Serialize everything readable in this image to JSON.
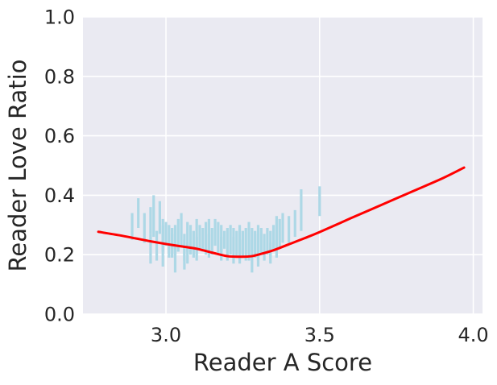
{
  "chart_data": {
    "type": "line",
    "title": "",
    "xlabel": "Reader A Score",
    "ylabel": "Reader Love Ratio",
    "xlim": [
      2.73,
      4.03
    ],
    "ylim": [
      0.0,
      1.0
    ],
    "xticks": [
      3.0,
      3.5,
      4.0
    ],
    "xtick_labels": [
      "3.0",
      "3.5",
      "4.0"
    ],
    "yticks": [
      0.0,
      0.2,
      0.4,
      0.6,
      0.8,
      1.0
    ],
    "ytick_labels": [
      "0.0",
      "0.2",
      "0.4",
      "0.6",
      "0.8",
      "1.0"
    ],
    "grid": true,
    "background_color": "#eaeaf2",
    "series": [
      {
        "kind": "vertical-ranges",
        "color": "#add8e6",
        "ranges": [
          [
            2.89,
            0.25,
            0.34
          ],
          [
            2.91,
            0.29,
            0.39
          ],
          [
            2.93,
            0.24,
            0.34
          ],
          [
            2.95,
            0.27,
            0.36
          ],
          [
            2.96,
            0.26,
            0.4
          ],
          [
            2.97,
            0.18,
            0.28
          ],
          [
            2.98,
            0.27,
            0.38
          ],
          [
            2.99,
            0.21,
            0.32
          ],
          [
            3.0,
            0.23,
            0.31
          ],
          [
            3.01,
            0.19,
            0.3
          ],
          [
            3.02,
            0.22,
            0.29
          ],
          [
            3.03,
            0.2,
            0.3
          ],
          [
            3.04,
            0.21,
            0.32
          ],
          [
            3.05,
            0.23,
            0.34
          ],
          [
            3.06,
            0.18,
            0.27
          ],
          [
            3.07,
            0.21,
            0.31
          ],
          [
            3.08,
            0.2,
            0.3
          ],
          [
            3.09,
            0.19,
            0.28
          ],
          [
            3.1,
            0.2,
            0.32
          ],
          [
            3.11,
            0.22,
            0.3
          ],
          [
            3.12,
            0.21,
            0.29
          ],
          [
            3.13,
            0.2,
            0.31
          ],
          [
            3.14,
            0.21,
            0.32
          ],
          [
            3.15,
            0.2,
            0.29
          ],
          [
            3.16,
            0.23,
            0.32
          ],
          [
            3.17,
            0.2,
            0.31
          ],
          [
            3.18,
            0.21,
            0.3
          ],
          [
            3.19,
            0.22,
            0.28
          ],
          [
            3.2,
            0.18,
            0.29
          ],
          [
            3.21,
            0.2,
            0.3
          ],
          [
            3.22,
            0.21,
            0.29
          ],
          [
            3.23,
            0.19,
            0.28
          ],
          [
            3.24,
            0.2,
            0.3
          ],
          [
            3.25,
            0.19,
            0.28
          ],
          [
            3.26,
            0.18,
            0.29
          ],
          [
            3.27,
            0.18,
            0.31
          ],
          [
            3.28,
            0.21,
            0.29
          ],
          [
            3.29,
            0.19,
            0.28
          ],
          [
            3.3,
            0.18,
            0.3
          ],
          [
            3.31,
            0.2,
            0.29
          ],
          [
            3.32,
            0.18,
            0.27
          ],
          [
            3.33,
            0.2,
            0.29
          ],
          [
            3.34,
            0.19,
            0.28
          ],
          [
            3.35,
            0.21,
            0.3
          ],
          [
            3.36,
            0.23,
            0.33
          ],
          [
            3.37,
            0.22,
            0.32
          ],
          [
            3.38,
            0.24,
            0.34
          ],
          [
            3.4,
            0.24,
            0.33
          ],
          [
            3.42,
            0.26,
            0.35
          ],
          [
            3.44,
            0.28,
            0.42
          ],
          [
            3.5,
            0.33,
            0.43
          ],
          [
            2.95,
            0.17,
            0.27
          ],
          [
            3.03,
            0.14,
            0.24
          ],
          [
            3.06,
            0.15,
            0.25
          ],
          [
            3.1,
            0.18,
            0.26
          ],
          [
            3.14,
            0.19,
            0.27
          ],
          [
            3.22,
            0.17,
            0.26
          ],
          [
            3.28,
            0.14,
            0.25
          ],
          [
            3.3,
            0.16,
            0.27
          ],
          [
            3.34,
            0.17,
            0.24
          ],
          [
            2.99,
            0.16,
            0.3
          ],
          [
            3.02,
            0.19,
            0.27
          ],
          [
            3.07,
            0.17,
            0.24
          ],
          [
            3.18,
            0.18,
            0.26
          ],
          [
            3.24,
            0.17,
            0.25
          ],
          [
            3.36,
            0.19,
            0.25
          ]
        ]
      },
      {
        "kind": "line",
        "color": "#ff0000",
        "x": [
          2.78,
          2.85,
          2.9,
          2.95,
          3.0,
          3.05,
          3.1,
          3.15,
          3.2,
          3.25,
          3.28,
          3.3,
          3.35,
          3.4,
          3.45,
          3.5,
          3.6,
          3.7,
          3.8,
          3.9,
          3.97
        ],
        "y": [
          0.277,
          0.265,
          0.255,
          0.245,
          0.236,
          0.228,
          0.22,
          0.207,
          0.195,
          0.193,
          0.195,
          0.2,
          0.215,
          0.235,
          0.255,
          0.276,
          0.322,
          0.367,
          0.412,
          0.457,
          0.493
        ]
      }
    ]
  }
}
